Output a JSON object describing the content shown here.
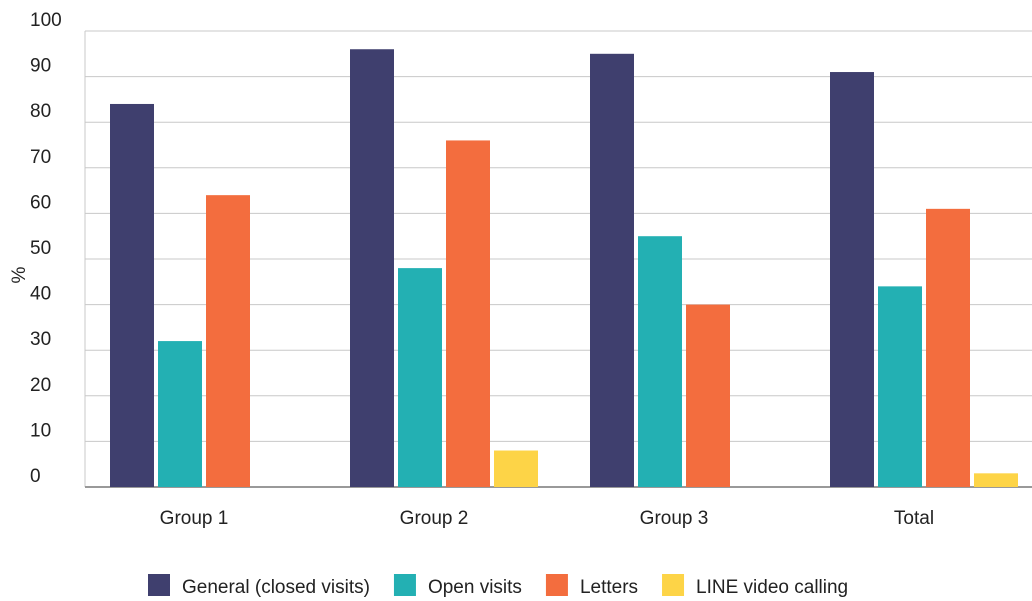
{
  "chart_data": {
    "type": "bar",
    "y_label": "%",
    "categories": [
      "Group 1",
      "Group 2",
      "Group 3",
      "Total"
    ],
    "series": [
      {
        "name": "General (closed visits)",
        "color": "#3f3f6e",
        "values": [
          84,
          96,
          95,
          91
        ]
      },
      {
        "name": "Open visits",
        "color": "#23b0b3",
        "values": [
          32,
          48,
          55,
          44
        ]
      },
      {
        "name": "Letters",
        "color": "#f36d3e",
        "values": [
          64,
          76,
          40,
          61
        ]
      },
      {
        "name": "LINE video calling",
        "color": "#fdd447",
        "values": [
          0,
          8,
          0,
          3
        ]
      }
    ],
    "ylim": [
      0,
      100
    ],
    "yticks": [
      0,
      10,
      20,
      30,
      40,
      50,
      60,
      70,
      80,
      90,
      100
    ],
    "grid": true
  }
}
